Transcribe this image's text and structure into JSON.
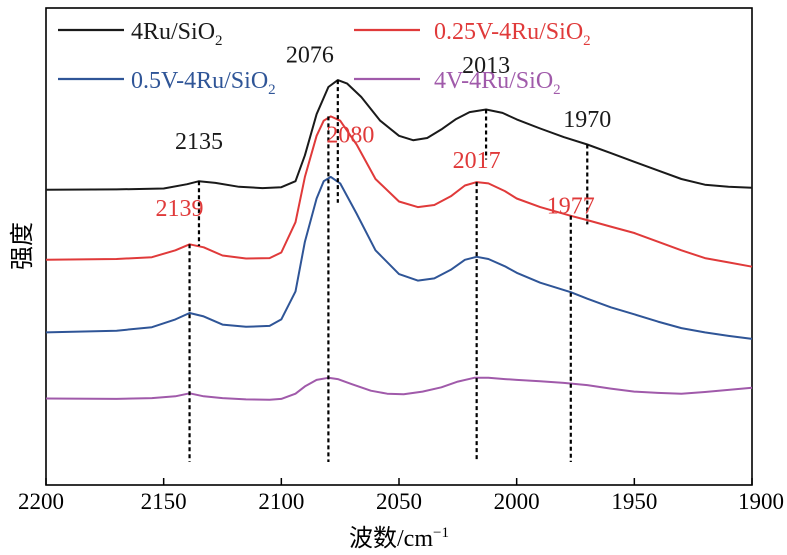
{
  "chart_data": {
    "type": "line",
    "title": "",
    "xlabel": "波数/cm",
    "xlabel_sup": "−1",
    "ylabel": "强度",
    "xlim": [
      2200,
      1900
    ],
    "xticks": [
      2200,
      2150,
      2100,
      2050,
      2000,
      1950,
      1900
    ],
    "ylim": [
      0,
      1
    ],
    "grid": false,
    "legend": {
      "placement": "top",
      "entries": [
        {
          "text": "4Ru/SiO",
          "sub": "2",
          "color": "#1a1a1a"
        },
        {
          "text": "0.25V-4Ru/SiO",
          "sub": "2",
          "color": "#e03a3a"
        },
        {
          "text": "0.5V-4Ru/SiO",
          "sub": "2",
          "color": "#2f5597"
        },
        {
          "text": "4V-4Ru/SiO",
          "sub": "2",
          "color": "#a05aaa"
        }
      ]
    },
    "series": [
      {
        "name": "4Ru/SiO2",
        "color": "#1a1a1a",
        "x": [
          2200,
          2170,
          2150,
          2140,
          2135,
          2128,
          2118,
          2108,
          2100,
          2094,
          2090,
          2085,
          2080,
          2076,
          2072,
          2066,
          2058,
          2050,
          2044,
          2038,
          2032,
          2026,
          2020,
          2013,
          2006,
          2000,
          1990,
          1980,
          1970,
          1960,
          1950,
          1940,
          1930,
          1920,
          1910,
          1900
        ],
        "y": [
          0.63,
          0.631,
          0.633,
          0.643,
          0.65,
          0.646,
          0.637,
          0.634,
          0.636,
          0.65,
          0.71,
          0.805,
          0.868,
          0.884,
          0.876,
          0.845,
          0.79,
          0.755,
          0.745,
          0.75,
          0.77,
          0.793,
          0.81,
          0.816,
          0.808,
          0.793,
          0.772,
          0.752,
          0.735,
          0.715,
          0.695,
          0.675,
          0.655,
          0.642,
          0.637,
          0.635
        ]
      },
      {
        "name": "0.25V-4Ru/SiO2",
        "color": "#e03a3a",
        "x": [
          2200,
          2170,
          2155,
          2145,
          2139,
          2133,
          2125,
          2115,
          2105,
          2100,
          2094,
          2090,
          2085,
          2082,
          2079,
          2075,
          2068,
          2060,
          2050,
          2042,
          2035,
          2028,
          2022,
          2017,
          2012,
          2005,
          2000,
          1990,
          1977,
          1970,
          1960,
          1950,
          1940,
          1930,
          1920,
          1910,
          1900
        ],
        "y": [
          0.468,
          0.47,
          0.474,
          0.49,
          0.504,
          0.497,
          0.478,
          0.471,
          0.472,
          0.485,
          0.555,
          0.66,
          0.755,
          0.79,
          0.8,
          0.79,
          0.735,
          0.655,
          0.603,
          0.59,
          0.595,
          0.615,
          0.64,
          0.648,
          0.645,
          0.627,
          0.61,
          0.59,
          0.57,
          0.56,
          0.545,
          0.53,
          0.51,
          0.49,
          0.472,
          0.462,
          0.452
        ]
      },
      {
        "name": "0.5V-4Ru/SiO2",
        "color": "#2f5597",
        "x": [
          2200,
          2170,
          2155,
          2145,
          2139,
          2133,
          2125,
          2115,
          2105,
          2100,
          2094,
          2090,
          2085,
          2082,
          2079,
          2075,
          2068,
          2060,
          2050,
          2042,
          2035,
          2028,
          2022,
          2017,
          2012,
          2005,
          2000,
          1990,
          1977,
          1970,
          1960,
          1950,
          1940,
          1930,
          1920,
          1910,
          1900
        ],
        "y": [
          0.3,
          0.304,
          0.312,
          0.33,
          0.345,
          0.337,
          0.318,
          0.313,
          0.315,
          0.33,
          0.395,
          0.51,
          0.61,
          0.65,
          0.66,
          0.645,
          0.575,
          0.49,
          0.435,
          0.42,
          0.425,
          0.445,
          0.468,
          0.475,
          0.47,
          0.453,
          0.438,
          0.415,
          0.393,
          0.378,
          0.358,
          0.342,
          0.325,
          0.31,
          0.3,
          0.292,
          0.285
        ]
      },
      {
        "name": "4V-4Ru/SiO2",
        "color": "#a05aaa",
        "x": [
          2200,
          2170,
          2155,
          2145,
          2139,
          2133,
          2125,
          2115,
          2105,
          2100,
          2094,
          2090,
          2085,
          2080,
          2076,
          2070,
          2062,
          2055,
          2048,
          2040,
          2032,
          2025,
          2018,
          2012,
          2005,
          2000,
          1990,
          1980,
          1970,
          1960,
          1950,
          1940,
          1930,
          1920,
          1910,
          1900
        ],
        "y": [
          0.147,
          0.146,
          0.148,
          0.152,
          0.159,
          0.152,
          0.148,
          0.145,
          0.144,
          0.146,
          0.158,
          0.175,
          0.19,
          0.195,
          0.192,
          0.18,
          0.165,
          0.158,
          0.157,
          0.163,
          0.173,
          0.186,
          0.195,
          0.195,
          0.192,
          0.19,
          0.187,
          0.183,
          0.178,
          0.17,
          0.163,
          0.16,
          0.158,
          0.162,
          0.167,
          0.172
        ]
      }
    ],
    "annotations": [
      {
        "label": "2135",
        "x": 2135,
        "color": "#1a1a1a",
        "line": [
          0.65,
          0.5
        ],
        "label_y": 0.725
      },
      {
        "label": "2076",
        "x": 2076,
        "color": "#1a1a1a",
        "line": [
          0.884,
          0.6
        ],
        "label_y": 0.925,
        "label_dx": -28
      },
      {
        "label": "2013",
        "x": 2013,
        "color": "#1a1a1a",
        "line": [
          0.816,
          0.7
        ],
        "label_y": 0.9
      },
      {
        "label": "1970",
        "x": 1970,
        "color": "#1a1a1a",
        "line": [
          0.735,
          0.55
        ],
        "label_y": 0.775
      },
      {
        "label": "2139",
        "x": 2139,
        "color": "#e03a3a",
        "line": [
          0.504,
          0.0
        ],
        "label_y": 0.57,
        "label_dx": -10
      },
      {
        "label": "2080",
        "x": 2080,
        "color": "#e03a3a",
        "line": [
          0.8,
          0.0
        ],
        "label_y": 0.74,
        "label_dx": 22
      },
      {
        "label": "2017",
        "x": 2017,
        "color": "#e03a3a",
        "line": [
          0.648,
          0.0
        ],
        "label_y": 0.68
      },
      {
        "label": "1977",
        "x": 1977,
        "color": "#e03a3a",
        "line": [
          0.57,
          0.0
        ],
        "label_y": 0.575
      }
    ]
  }
}
